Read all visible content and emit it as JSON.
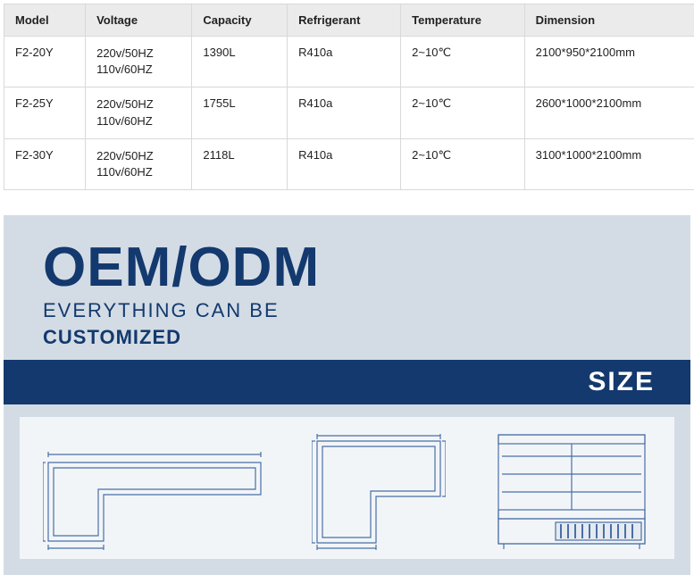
{
  "table": {
    "headers": [
      "Model",
      "Voltage",
      "Capacity",
      "Refrigerant",
      "Temperature",
      "Dimension"
    ],
    "rows": [
      {
        "model": "F2-20Y",
        "voltage1": "220v/50HZ",
        "voltage2": "110v/60HZ",
        "capacity": "1390L",
        "refrigerant": "R410a",
        "temperature": "2~10℃",
        "dimension": "2100*950*2100mm"
      },
      {
        "model": "F2-25Y",
        "voltage1": "220v/50HZ",
        "voltage2": "110v/60HZ",
        "capacity": "1755L",
        "refrigerant": "R410a",
        "temperature": "2~10℃",
        "dimension": "2600*1000*2100mm"
      },
      {
        "model": "F2-30Y",
        "voltage1": "220v/50HZ",
        "voltage2": "110v/60HZ",
        "capacity": "2118L",
        "refrigerant": "R410a",
        "temperature": "2~10℃",
        "dimension": "3100*1000*2100mm"
      }
    ]
  },
  "promo": {
    "heading": "OEM/ODM",
    "tagline": "EVERYTHING CAN BE",
    "customized": "CUSTOMIZED",
    "size_label": "SIZE"
  },
  "colors": {
    "brand_navy": "#13396e",
    "panel_bg": "#d3dce5",
    "diagram_bg": "#f2f5f8",
    "table_border": "#d9d9d9",
    "table_header_bg": "#ebebeb",
    "line_blue": "#4a6fa5"
  }
}
